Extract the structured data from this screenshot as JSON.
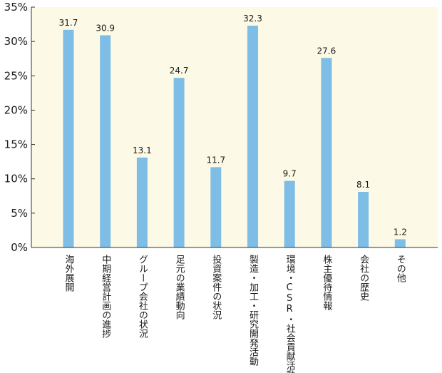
{
  "chart_data": {
    "type": "bar",
    "categories": [
      "海外展開",
      "中期経営計画の進捗",
      "グループ会社の状況",
      "足元の業績動向",
      "投資案件の状況",
      "製造・加工・研究開発活動",
      "環境・CSR・社会貢献活動",
      "株主優待情報",
      "会社の歴史",
      "その他"
    ],
    "values": [
      31.7,
      30.9,
      13.1,
      24.7,
      11.7,
      32.3,
      9.7,
      27.6,
      8.1,
      1.2
    ],
    "value_labels": [
      "31.7",
      "30.9",
      "13.1",
      "24.7",
      "11.7",
      "32.3",
      "9.7",
      "27.6",
      "8.1",
      "1.2"
    ],
    "yticks": [
      0,
      5,
      10,
      15,
      20,
      25,
      30,
      35
    ],
    "ytick_labels": [
      "0%",
      "5%",
      "10%",
      "15%",
      "20%",
      "25%",
      "30%",
      "35%"
    ],
    "ylim": [
      0,
      35
    ],
    "grid": false,
    "colors": {
      "bar": "#7dbde6",
      "plot_bg": "#fcfae6",
      "axis": "#333333"
    }
  }
}
